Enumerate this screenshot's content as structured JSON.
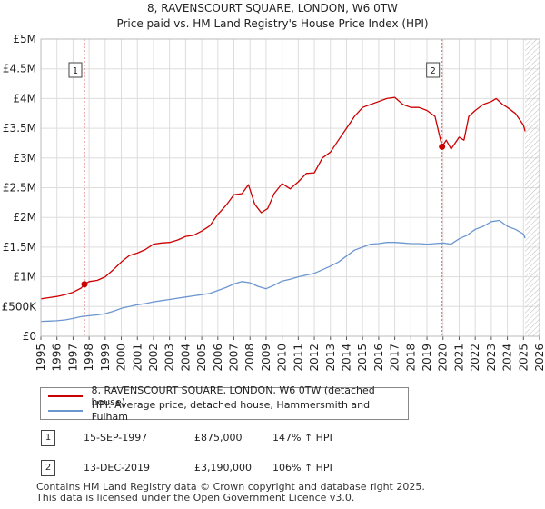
{
  "title_line1": "8, RAVENSCOURT SQUARE, LONDON, W6 0TW",
  "title_line2": "Price paid vs. HM Land Registry's House Price Index (HPI)",
  "chart_data": {
    "type": "line",
    "xlim": [
      1995,
      2026
    ],
    "ylim": [
      0,
      5000000
    ],
    "x_ticks": [
      1995,
      1996,
      1997,
      1998,
      1999,
      2000,
      2001,
      2002,
      2003,
      2004,
      2005,
      2006,
      2007,
      2008,
      2009,
      2010,
      2011,
      2012,
      2013,
      2014,
      2015,
      2016,
      2017,
      2018,
      2019,
      2020,
      2021,
      2022,
      2023,
      2024,
      2025,
      2026
    ],
    "y_ticks": [
      {
        "value": 0,
        "label": "£0"
      },
      {
        "value": 500000,
        "label": "£500K"
      },
      {
        "value": 1000000,
        "label": "£1M"
      },
      {
        "value": 1500000,
        "label": "£1.5M"
      },
      {
        "value": 2000000,
        "label": "£2M"
      },
      {
        "value": 2500000,
        "label": "£2.5M"
      },
      {
        "value": 3000000,
        "label": "£3M"
      },
      {
        "value": 3500000,
        "label": "£3.5M"
      },
      {
        "value": 4000000,
        "label": "£4M"
      },
      {
        "value": 4500000,
        "label": "£4.5M"
      },
      {
        "value": 5000000,
        "label": "£5M"
      }
    ],
    "grid": true,
    "hatch_from": 2025.1,
    "series": [
      {
        "name": "8, RAVENSCOURT SQUARE, LONDON, W6 0TW (detached house)",
        "color": "#cc0000",
        "x": [
          1995,
          1995.5,
          1996,
          1996.5,
          1997,
          1997.5,
          1997.71,
          1998,
          1998.5,
          1999,
          1999.5,
          2000,
          2000.5,
          2001,
          2001.5,
          2002,
          2002.5,
          2003,
          2003.5,
          2004,
          2004.5,
          2005,
          2005.5,
          2006,
          2006.5,
          2007,
          2007.5,
          2007.9,
          2008.3,
          2008.7,
          2009.1,
          2009.5,
          2010,
          2010.5,
          2011,
          2011.5,
          2012,
          2012.5,
          2013,
          2013.5,
          2014,
          2014.5,
          2015,
          2015.5,
          2016,
          2016.5,
          2017,
          2017.5,
          2018,
          2018.5,
          2019,
          2019.5,
          2019.94,
          2020.2,
          2020.5,
          2021,
          2021.3,
          2021.6,
          2022,
          2022.5,
          2023,
          2023.3,
          2023.7,
          2024,
          2024.5,
          2025,
          2025.1
        ],
        "y": [
          630000,
          650000,
          670000,
          700000,
          740000,
          810000,
          875000,
          920000,
          940000,
          1000000,
          1120000,
          1250000,
          1360000,
          1400000,
          1460000,
          1550000,
          1570000,
          1580000,
          1620000,
          1680000,
          1700000,
          1770000,
          1860000,
          2050000,
          2200000,
          2380000,
          2400000,
          2550000,
          2220000,
          2080000,
          2150000,
          2400000,
          2570000,
          2480000,
          2600000,
          2740000,
          2750000,
          3000000,
          3100000,
          3300000,
          3500000,
          3700000,
          3850000,
          3900000,
          3950000,
          4000000,
          4020000,
          3900000,
          3850000,
          3850000,
          3800000,
          3700000,
          3190000,
          3300000,
          3150000,
          3350000,
          3300000,
          3700000,
          3800000,
          3900000,
          3950000,
          4000000,
          3900000,
          3850000,
          3750000,
          3550000,
          3450000
        ]
      },
      {
        "name": "HPI: Average price, detached house, Hammersmith and Fulham",
        "color": "#6b96cf",
        "x": [
          1995,
          1995.5,
          1996,
          1996.5,
          1997,
          1997.5,
          1998,
          1998.5,
          1999,
          1999.5,
          2000,
          2000.5,
          2001,
          2001.5,
          2002,
          2002.5,
          2003,
          2003.5,
          2004,
          2004.5,
          2005,
          2005.5,
          2006,
          2006.5,
          2007,
          2007.5,
          2008,
          2008.5,
          2009,
          2009.5,
          2010,
          2010.5,
          2011,
          2011.5,
          2012,
          2012.5,
          2013,
          2013.5,
          2014,
          2014.5,
          2015,
          2015.5,
          2016,
          2016.5,
          2017,
          2017.5,
          2018,
          2018.5,
          2019,
          2019.5,
          2020,
          2020.5,
          2021,
          2021.5,
          2022,
          2022.5,
          2023,
          2023.5,
          2024,
          2024.5,
          2025,
          2025.1
        ],
        "y": [
          250000,
          255000,
          262000,
          275000,
          300000,
          330000,
          345000,
          360000,
          380000,
          420000,
          470000,
          500000,
          530000,
          550000,
          580000,
          600000,
          620000,
          640000,
          660000,
          680000,
          700000,
          720000,
          770000,
          820000,
          880000,
          920000,
          900000,
          840000,
          800000,
          860000,
          930000,
          960000,
          1000000,
          1030000,
          1060000,
          1120000,
          1180000,
          1250000,
          1350000,
          1450000,
          1500000,
          1550000,
          1560000,
          1580000,
          1580000,
          1570000,
          1560000,
          1560000,
          1550000,
          1560000,
          1570000,
          1550000,
          1640000,
          1700000,
          1800000,
          1850000,
          1930000,
          1950000,
          1850000,
          1800000,
          1720000,
          1650000
        ]
      }
    ],
    "annotations": [
      {
        "label": "1",
        "x": 1997.71,
        "y": 875000
      },
      {
        "label": "2",
        "x": 2019.94,
        "y": 3190000
      }
    ]
  },
  "transactions": [
    {
      "num": "1",
      "date": "15-SEP-1997",
      "price": "£875,000",
      "hpi": "147% ↑ HPI"
    },
    {
      "num": "2",
      "date": "13-DEC-2019",
      "price": "£3,190,000",
      "hpi": "106% ↑ HPI"
    }
  ],
  "footer_line1": "Contains HM Land Registry data © Crown copyright and database right 2025.",
  "footer_line2": "This data is licensed under the Open Government Licence v3.0."
}
